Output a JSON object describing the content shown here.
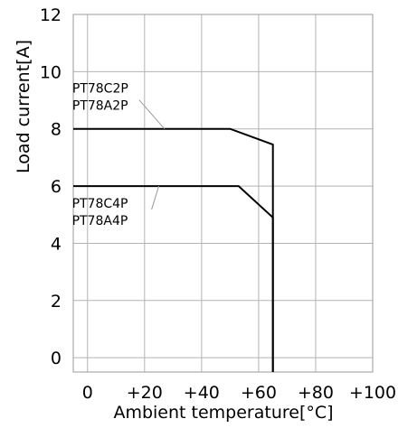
{
  "chart_data": {
    "type": "line",
    "title": "",
    "xlabel": "Ambient temperature[°C]",
    "ylabel": "Load current[A]",
    "xlim": [
      -5,
      100
    ],
    "ylim": [
      -0.5,
      12
    ],
    "grid": true,
    "x_ticks": [
      {
        "value": 0,
        "label": "0"
      },
      {
        "value": 20,
        "label": "+20"
      },
      {
        "value": 40,
        "label": "+40"
      },
      {
        "value": 60,
        "label": "+60"
      },
      {
        "value": 80,
        "label": "+80"
      },
      {
        "value": 100,
        "label": "+100"
      }
    ],
    "y_ticks": [
      {
        "value": 0,
        "label": "0"
      },
      {
        "value": 2,
        "label": "2"
      },
      {
        "value": 4,
        "label": "4"
      },
      {
        "value": 6,
        "label": "6"
      },
      {
        "value": 8,
        "label": "8"
      },
      {
        "value": 10,
        "label": "10"
      },
      {
        "value": 12,
        "label": "12"
      }
    ],
    "series": [
      {
        "labels": [
          "PT78C2P",
          "PT78A2P"
        ],
        "points": [
          [
            -5,
            8
          ],
          [
            50,
            8
          ],
          [
            65,
            7.45
          ],
          [
            65,
            -0.5
          ]
        ]
      },
      {
        "labels": [
          "PT78C4P",
          "PT78A4P"
        ],
        "points": [
          [
            -5,
            6
          ],
          [
            53,
            6
          ],
          [
            65,
            4.9
          ],
          [
            65,
            -0.5
          ]
        ]
      }
    ],
    "annotations": [
      {
        "series": 0,
        "position": "upper-left",
        "pointer": [
          27,
          8
        ]
      },
      {
        "series": 1,
        "position": "lower-left",
        "pointer": [
          25,
          6
        ]
      }
    ]
  }
}
